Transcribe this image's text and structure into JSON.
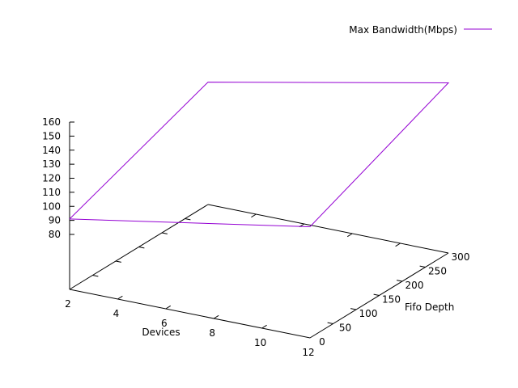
{
  "chart_data": {
    "type": "line",
    "projection": "3d-surface",
    "xlabel": "Devices",
    "ylabel": "Fifo Depth",
    "zlabel": "",
    "xlim": [
      2,
      12
    ],
    "ylim": [
      0,
      300
    ],
    "zlim": [
      80,
      160
    ],
    "x_ticks": [
      2,
      4,
      6,
      8,
      10,
      12
    ],
    "y_ticks": [
      0,
      50,
      100,
      150,
      200,
      250,
      300
    ],
    "z_ticks": [
      80,
      90,
      100,
      110,
      120,
      130,
      140,
      150,
      160
    ],
    "legend": {
      "position": "top-right"
    },
    "series": [
      {
        "name": "Max Bandwidth(Mbps)",
        "color": "#9400d3",
        "points": [
          {
            "x": 2,
            "y": 0,
            "z": 91
          },
          {
            "x": 12,
            "y": 0,
            "z": 120
          },
          {
            "x": 12,
            "y": 300,
            "z": 162
          },
          {
            "x": 2,
            "y": 300,
            "z": 128
          },
          {
            "x": 2,
            "y": 0,
            "z": 91
          }
        ]
      }
    ]
  }
}
